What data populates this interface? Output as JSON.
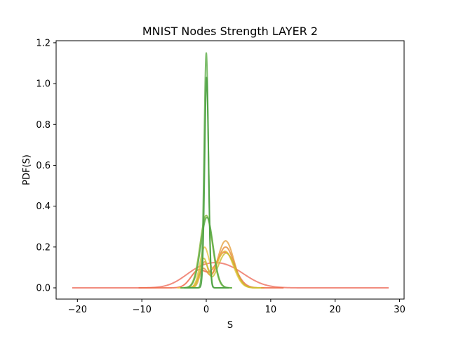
{
  "chart_data": {
    "type": "line",
    "title": "MNIST Nodes Strength LAYER 2",
    "xlabel": "S",
    "ylabel": "PDF(S)",
    "xlim": [
      -23.3,
      30.7
    ],
    "ylim": [
      -0.055,
      1.21
    ],
    "xticks": [
      -20,
      -10,
      0,
      10,
      20,
      30
    ],
    "yticks": [
      0.0,
      0.2,
      0.4,
      0.6,
      0.8,
      1.0,
      1.2
    ],
    "xtick_labels": [
      "−20",
      "−10",
      "0",
      "10",
      "20",
      "30"
    ],
    "ytick_labels": [
      "0.0",
      "0.2",
      "0.4",
      "0.6",
      "0.8",
      "1.0",
      "1.2"
    ],
    "grid": false,
    "series": [
      {
        "color": "#f08070",
        "opacity": 0.9,
        "range": [
          -20.8,
          28.3
        ],
        "components": [
          [
            0.055,
            -1.5,
            2.5
          ],
          [
            0.105,
            2.8,
            3.2
          ]
        ]
      },
      {
        "color": "#ee6a4a",
        "opacity": 0.85,
        "range": [
          -10.5,
          12.0
        ],
        "components": [
          [
            0.085,
            -1.2,
            1.2
          ],
          [
            0.175,
            2.9,
            1.5
          ]
        ]
      },
      {
        "color": "#e5a040",
        "opacity": 0.8,
        "range": [
          -4.0,
          9.0
        ],
        "components": [
          [
            0.12,
            -0.3,
            0.6
          ],
          [
            0.23,
            3.0,
            1.25
          ]
        ]
      },
      {
        "color": "#e58a35",
        "opacity": 0.8,
        "range": [
          -4.0,
          9.0
        ],
        "components": [
          [
            0.09,
            -0.5,
            0.7
          ],
          [
            0.2,
            3.0,
            1.3
          ]
        ]
      },
      {
        "color": "#e8c040",
        "opacity": 0.8,
        "range": [
          -4.5,
          8.5
        ],
        "components": [
          [
            0.19,
            -0.3,
            0.7
          ],
          [
            0.18,
            2.9,
            1.3
          ]
        ]
      },
      {
        "color": "#c8c030",
        "opacity": 0.8,
        "range": [
          -4.0,
          8.5
        ],
        "components": [
          [
            0.14,
            -0.4,
            0.6
          ],
          [
            0.17,
            3.1,
            1.3
          ]
        ]
      },
      {
        "color": "#8ab840",
        "opacity": 0.85,
        "range": [
          -4.0,
          4.0
        ],
        "components": [
          [
            0.355,
            0.0,
            0.95
          ]
        ]
      },
      {
        "color": "#5aaa45",
        "opacity": 0.85,
        "range": [
          -4.0,
          4.0
        ],
        "components": [
          [
            0.345,
            0.1,
            0.95
          ]
        ]
      },
      {
        "color": "#64b050",
        "opacity": 0.85,
        "range": [
          -3.5,
          3.5
        ],
        "components": [
          [
            1.15,
            0.0,
            0.33
          ]
        ]
      },
      {
        "color": "#4aa040",
        "opacity": 0.9,
        "range": [
          -3.5,
          3.5
        ],
        "components": [
          [
            1.03,
            0.05,
            0.3
          ]
        ]
      }
    ]
  }
}
